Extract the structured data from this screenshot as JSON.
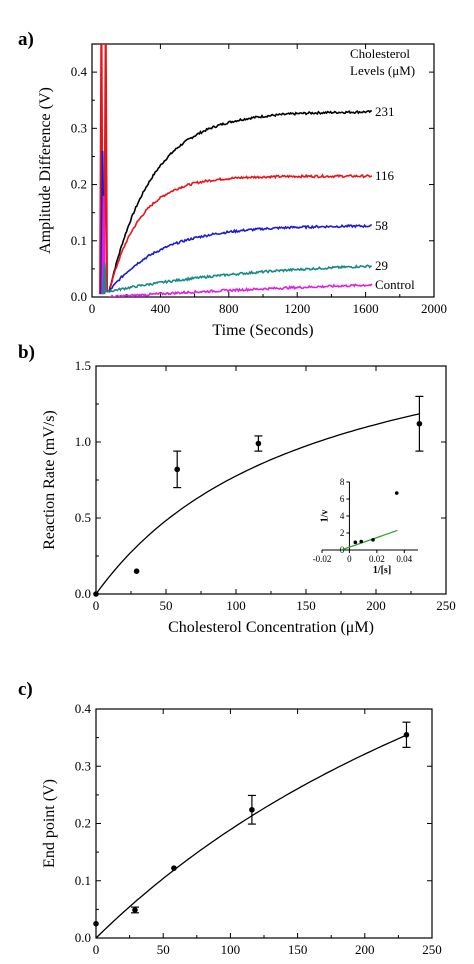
{
  "chart_data": [
    {
      "panel": "a)",
      "type": "line",
      "xlabel": "Time (Seconds)",
      "ylabel": "Amplitude Difference (V)",
      "xlim": [
        0,
        2000
      ],
      "ylim": [
        0,
        0.45
      ],
      "xticks": [
        0,
        400,
        800,
        1200,
        1600,
        2000
      ],
      "yticks": [
        0.0,
        0.1,
        0.2,
        0.3,
        0.4
      ],
      "legend_title": [
        "Cholesterol",
        "Levels (μM)"
      ],
      "series": [
        {
          "name": "231",
          "color": "#000000",
          "start": 0.01,
          "plateau": 0.33,
          "tau": 250
        },
        {
          "name": "116",
          "color": "#e8141b",
          "start": 0.01,
          "plateau": 0.215,
          "tau": 180
        },
        {
          "name": "58",
          "color": "#1c1ccf",
          "start": 0.01,
          "plateau": 0.127,
          "tau": 300
        },
        {
          "name": "29",
          "color": "#168a8a",
          "start": 0.01,
          "plateau": 0.065,
          "tau": 900
        },
        {
          "name": "Control",
          "color": "#e020e0",
          "start": 0.0,
          "plateau": 0.04,
          "tau": 2000
        }
      ]
    },
    {
      "panel": "b)",
      "type": "scatter",
      "xlabel": "Cholesterol Concentration (μM)",
      "ylabel": "Reaction Rate (mV/s)",
      "xlim": [
        0,
        250
      ],
      "ylim": [
        0,
        1.5
      ],
      "xticks": [
        0,
        50,
        100,
        150,
        200,
        250
      ],
      "yticks": [
        0.0,
        0.5,
        1.0,
        1.5
      ],
      "points": [
        {
          "x": 0,
          "y": 0.0,
          "err": 0
        },
        {
          "x": 29,
          "y": 0.15,
          "err": 0
        },
        {
          "x": 58,
          "y": 0.82,
          "err": 0.12
        },
        {
          "x": 116,
          "y": 0.99,
          "err": 0.05
        },
        {
          "x": 231,
          "y": 1.12,
          "err": 0.18
        }
      ],
      "fit": {
        "vmax": 1.98,
        "km": 155
      },
      "inset": {
        "xlabel": "1/[s]",
        "ylabel": "1/v",
        "xlim": [
          -0.02,
          0.05
        ],
        "ylim": [
          0,
          8
        ],
        "xticks": [
          -0.02,
          0.0,
          0.02,
          0.04
        ],
        "yticks": [
          0,
          2,
          4,
          6,
          8
        ],
        "points": [
          {
            "x": 0.0043,
            "y": 0.9
          },
          {
            "x": 0.0086,
            "y": 1.0
          },
          {
            "x": 0.0172,
            "y": 1.2
          },
          {
            "x": 0.0345,
            "y": 6.7
          }
        ],
        "fit_line": [
          [
            -0.006,
            0.0
          ],
          [
            0.035,
            2.3
          ]
        ]
      }
    },
    {
      "panel": "c)",
      "type": "scatter",
      "xlabel": "Concentration (μM)",
      "ylabel": "End point (V)",
      "xlim": [
        0,
        250
      ],
      "ylim": [
        0,
        0.4
      ],
      "xticks": [
        0,
        50,
        100,
        150,
        200,
        250
      ],
      "yticks": [
        0.0,
        0.1,
        0.2,
        0.3,
        0.4
      ],
      "points": [
        {
          "x": 0,
          "y": 0.025,
          "err": 0
        },
        {
          "x": 29,
          "y": 0.049,
          "err": 0.005
        },
        {
          "x": 58,
          "y": 0.122,
          "err": 0
        },
        {
          "x": 116,
          "y": 0.224,
          "err": 0.025
        },
        {
          "x": 231,
          "y": 0.355,
          "err": 0.022
        }
      ],
      "fit": {
        "vmax": 1.06,
        "km": 460
      }
    }
  ]
}
